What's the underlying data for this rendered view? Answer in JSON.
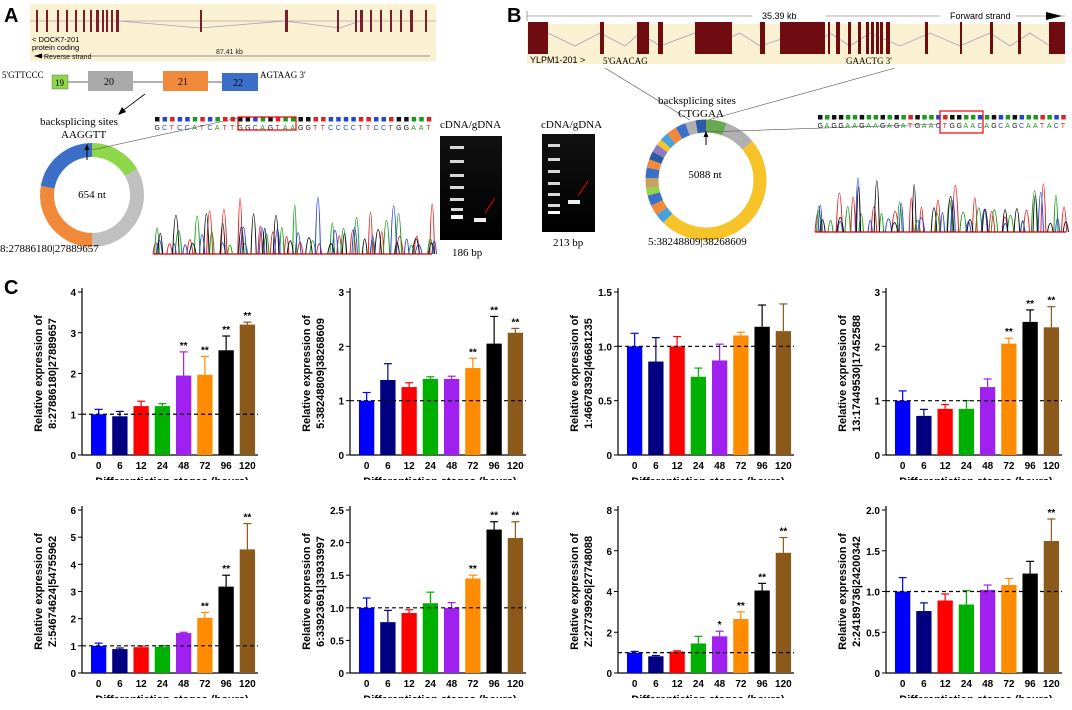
{
  "panels": {
    "a": "A",
    "b": "B",
    "c": "C"
  },
  "panel_a": {
    "transcript_label": "< DOCK7-201",
    "transcript_type": "protein coding",
    "strand": "Reverse strand",
    "length": "87.41 kb",
    "seq_left": "5'GTTCCC",
    "seq_right": "AGTAAG 3'",
    "exons": [
      "19",
      "20",
      "21",
      "22"
    ],
    "bs_title": "backsplicing sites",
    "bs_seq": "AAGGTT",
    "circle_len": "654 nt",
    "coords": "8:27886180|27889657",
    "trace_seq": "GCTCCATCATTGGCAGTAAGGTTCCCCTTCCTGGAAT",
    "gel_title": "cDNA/gDNA",
    "gel_size": "186 bp"
  },
  "gel_b": {
    "title": "cDNA/gDNA",
    "size": "213 bp"
  },
  "panel_b": {
    "length": "35.39 kb",
    "strand": "Forward strand",
    "transcript_label": "YLPM1-201 >",
    "seq_left": "5'GAACAG",
    "seq_right": "GAACTG 3'",
    "bs_title": "backsplicing sites",
    "bs_seq": "CTGGAA",
    "circle_len": "5088 nt",
    "coords": "5:38248809|38268609",
    "trace_seq": "GAGGAAGAAGAGATGAACTGGAACAGCAGCAATACT"
  },
  "colors": [
    "#0000ff",
    "#000080",
    "#ff0000",
    "#00b000",
    "#a020f0",
    "#ff8c00",
    "#000000",
    "#8b5a1a"
  ],
  "chart_data": [
    {
      "type": "bar",
      "categories": [
        "0",
        "6",
        "12",
        "24",
        "48",
        "72",
        "96",
        "120"
      ],
      "values": [
        1.0,
        0.95,
        1.2,
        1.2,
        1.95,
        1.97,
        2.57,
        3.2
      ],
      "errors": [
        0.12,
        0.12,
        0.12,
        0.06,
        0.58,
        0.45,
        0.35,
        0.06
      ],
      "sig": [
        "",
        "",
        "",
        "",
        "**",
        "**",
        "**",
        "**"
      ],
      "ylim": [
        0,
        4
      ],
      "ticks": [
        "0",
        "1",
        "2",
        "3",
        "4"
      ],
      "ylabel": "Relative expression of\n8:27886180|27889657",
      "xlabel": "Differentiation stages (hours)"
    },
    {
      "type": "bar",
      "categories": [
        "0",
        "6",
        "12",
        "24",
        "48",
        "72",
        "96",
        "120"
      ],
      "values": [
        1.0,
        1.38,
        1.25,
        1.4,
        1.4,
        1.6,
        2.05,
        2.25
      ],
      "errors": [
        0.15,
        0.3,
        0.08,
        0.04,
        0.05,
        0.18,
        0.5,
        0.08
      ],
      "sig": [
        "",
        "",
        "",
        "",
        "",
        "**",
        "**",
        "**"
      ],
      "ylim": [
        0,
        3
      ],
      "ticks": [
        "0",
        "1",
        "2",
        "3"
      ],
      "ylabel": "Relative expression of\n5:38248809|38268609",
      "xlabel": "Differentiation stages (hours)"
    },
    {
      "type": "bar",
      "categories": [
        "0",
        "6",
        "12",
        "24",
        "48",
        "72",
        "96",
        "120"
      ],
      "values": [
        1.0,
        0.86,
        1.0,
        0.72,
        0.87,
        1.1,
        1.18,
        1.14
      ],
      "errors": [
        0.12,
        0.22,
        0.09,
        0.08,
        0.15,
        0.03,
        0.2,
        0.25
      ],
      "sig": [
        "",
        "",
        "",
        "",
        "",
        "",
        "",
        ""
      ],
      "ylim": [
        0,
        1.5
      ],
      "ticks": [
        "0",
        "0.5",
        "1.0",
        "1.5"
      ],
      "ylabel": "Relative expression of\n1:46678392|46681235",
      "xlabel": "Differentiation stages (hours)"
    },
    {
      "type": "bar",
      "categories": [
        "0",
        "6",
        "12",
        "24",
        "48",
        "72",
        "96",
        "120"
      ],
      "values": [
        1.0,
        0.72,
        0.85,
        0.85,
        1.25,
        2.05,
        2.45,
        2.35
      ],
      "errors": [
        0.18,
        0.12,
        0.08,
        0.15,
        0.15,
        0.1,
        0.22,
        0.38
      ],
      "sig": [
        "",
        "",
        "",
        "",
        "",
        "**",
        "**",
        "**"
      ],
      "ylim": [
        0,
        3
      ],
      "ticks": [
        "0",
        "1",
        "2",
        "3"
      ],
      "ylabel": "Relative expression of\n13:17449530|17452588",
      "xlabel": "Differentiation stages (hours)"
    },
    {
      "type": "bar",
      "categories": [
        "0",
        "6",
        "12",
        "24",
        "48",
        "72",
        "96",
        "120"
      ],
      "values": [
        1.0,
        0.88,
        0.95,
        0.97,
        1.47,
        2.03,
        3.18,
        4.55
      ],
      "errors": [
        0.1,
        0.04,
        0.04,
        0.04,
        0.03,
        0.2,
        0.42,
        0.95
      ],
      "sig": [
        "",
        "",
        "",
        "",
        "",
        "**",
        "**",
        "**"
      ],
      "ylim": [
        0,
        6
      ],
      "ticks": [
        "0",
        "1",
        "2",
        "3",
        "4",
        "5",
        "6"
      ],
      "ylabel": "Relative expression of\nZ:54674624|54755962",
      "xlabel": "Differentiation stages (hours)"
    },
    {
      "type": "bar",
      "categories": [
        "0",
        "6",
        "12",
        "24",
        "48",
        "72",
        "96",
        "120"
      ],
      "values": [
        1.0,
        0.78,
        0.92,
        1.07,
        1.0,
        1.45,
        2.2,
        2.07
      ],
      "errors": [
        0.15,
        0.18,
        0.05,
        0.17,
        0.08,
        0.05,
        0.12,
        0.25
      ],
      "sig": [
        "",
        "",
        "",
        "",
        "",
        "**",
        "**",
        "**"
      ],
      "ylim": [
        0,
        2.5
      ],
      "ticks": [
        "0",
        "0.5",
        "1.0",
        "1.5",
        "2.0",
        "2.5"
      ],
      "ylabel": "Relative expression of\n6:33923691|33933997",
      "xlabel": "Differentiation stages (hours)"
    },
    {
      "type": "bar",
      "categories": [
        "0",
        "6",
        "12",
        "24",
        "48",
        "72",
        "96",
        "120"
      ],
      "values": [
        1.0,
        0.82,
        1.05,
        1.45,
        1.8,
        2.65,
        4.05,
        5.9
      ],
      "errors": [
        0.06,
        0.04,
        0.04,
        0.35,
        0.25,
        0.35,
        0.35,
        0.75
      ],
      "sig": [
        "",
        "",
        "",
        "",
        "*",
        "**",
        "**",
        "**"
      ],
      "ylim": [
        0,
        8
      ],
      "ticks": [
        "0",
        "2",
        "4",
        "6",
        "8"
      ],
      "ylabel": "Relative expression of\nZ:27739926|27748088",
      "xlabel": "Differentiation stages (hours)"
    },
    {
      "type": "bar",
      "categories": [
        "0",
        "6",
        "12",
        "24",
        "48",
        "72",
        "96",
        "120"
      ],
      "values": [
        1.0,
        0.76,
        0.89,
        0.84,
        1.02,
        1.08,
        1.22,
        1.62
      ],
      "errors": [
        0.17,
        0.1,
        0.08,
        0.17,
        0.06,
        0.08,
        0.15,
        0.27
      ],
      "sig": [
        "",
        "",
        "",
        "",
        "",
        "",
        "",
        "**"
      ],
      "ylim": [
        0,
        2
      ],
      "ticks": [
        "0",
        "0.5",
        "1.0",
        "1.5",
        "2.0"
      ],
      "ylabel": "Relative expression of\n2:24189736|24200342",
      "xlabel": "Differentiation stages (hours)"
    }
  ]
}
